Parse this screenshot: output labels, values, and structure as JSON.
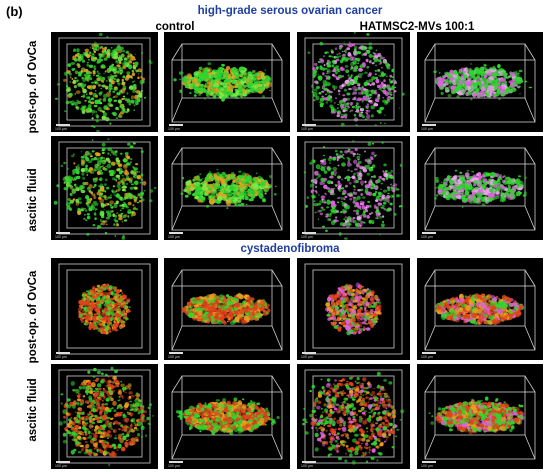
{
  "panel_label": "(b)",
  "sections": [
    {
      "title": "high-grade serous ovarian cancer",
      "columns": [
        "control",
        "HATMSC2-MVs 100:1"
      ],
      "rows": [
        "post-op. of OvCa",
        "ascitic fluid"
      ]
    },
    {
      "title": "cystadenofibroma",
      "rows": [
        "post-op. of OvCa",
        "ascitic fluid"
      ]
    }
  ],
  "scale_bar_text": "100 µm",
  "colors": {
    "title_blue": "#1f3fa0",
    "green": "#2fd62f",
    "red": "#e0421c",
    "orange": "#e8a020",
    "magenta": "#e060e0",
    "background": "#000000"
  }
}
